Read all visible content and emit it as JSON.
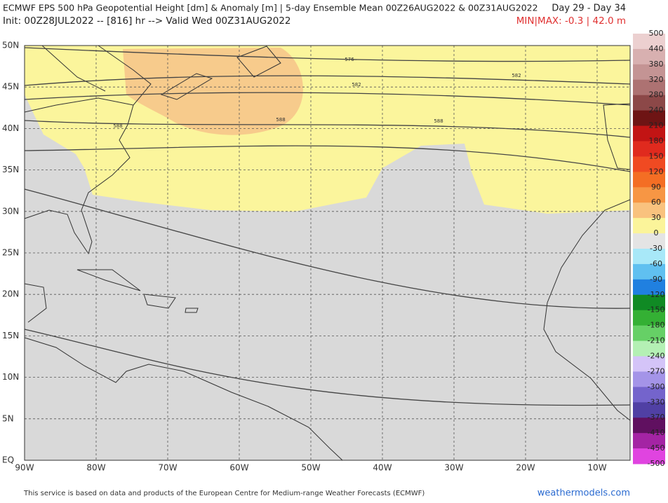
{
  "header": {
    "title": "ECMWF EPS 500 hPa Geopotential Height [dm] & Anomaly [m] | 5-day Ensemble Mean 00Z26AUG2022 & 00Z31AUG2022",
    "days": "Day 29 - Day 34",
    "init": "Init: 00Z28JUL2022 -- [816] hr --> Valid Wed 00Z31AUG2022",
    "minmax": "MIN|MAX: -0.3 | 42.0 m"
  },
  "map": {
    "lat_labels": [
      "50N",
      "45N",
      "40N",
      "35N",
      "30N",
      "25N",
      "20N",
      "15N",
      "10N",
      "5N",
      "EQ"
    ],
    "lon_labels": [
      "90W",
      "80W",
      "70W",
      "60W",
      "50W",
      "40W",
      "30W",
      "20W",
      "10W"
    ],
    "contour_labels": [
      "576",
      "582",
      "582",
      "588",
      "588",
      "588"
    ]
  },
  "colorbar": {
    "labels": [
      500,
      440,
      380,
      320,
      280,
      240,
      210,
      180,
      150,
      120,
      90,
      60,
      30,
      0,
      -30,
      -60,
      -90,
      -120,
      -150,
      -180,
      -210,
      -240,
      -270,
      -300,
      -330,
      -370,
      -410,
      -450,
      -500
    ],
    "colors": [
      "#ecd0d0",
      "#d8b0b0",
      "#c49494",
      "#ad7272",
      "#8c4848",
      "#6e1414",
      "#c21414",
      "#e02a1e",
      "#f04a22",
      "#f46e24",
      "#f79644",
      "#f9c27e",
      "#fbf49a",
      "#e4e4e4",
      "#a8e8f8",
      "#60c0f0",
      "#2080e0",
      "#108a24",
      "#34b034",
      "#66d066",
      "#b4f0b4",
      "#d4c4f8",
      "#a494e8",
      "#7464cc",
      "#5040a4",
      "#601060",
      "#a424a4",
      "#e044e0"
    ]
  },
  "footer": {
    "notice": "This service is based on data and products of the European Centre for Medium-range Weather Forecasts (ECMWF)",
    "site": "weathermodels.com"
  }
}
